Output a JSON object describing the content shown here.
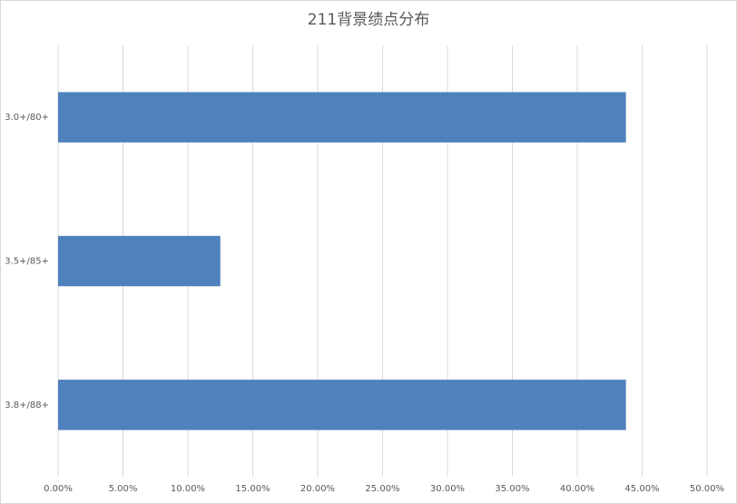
{
  "chart_data": {
    "type": "hbar",
    "title": "211背景绩点分布",
    "categories": [
      "3.0+/80+",
      "3.5+/85+",
      "3.8+/88+"
    ],
    "values": [
      43.75,
      12.5,
      43.75
    ],
    "color": "#4f81bd",
    "xlim": [
      0,
      50
    ],
    "xticks": [
      {
        "value": 0,
        "label": "0.00%"
      },
      {
        "value": 5,
        "label": "5.00%"
      },
      {
        "value": 10,
        "label": "10.00%"
      },
      {
        "value": 15,
        "label": "15.00%"
      },
      {
        "value": 20,
        "label": "20.00%"
      },
      {
        "value": 25,
        "label": "25.00%"
      },
      {
        "value": 30,
        "label": "30.00%"
      },
      {
        "value": 35,
        "label": "35.00%"
      },
      {
        "value": 40,
        "label": "40.00%"
      },
      {
        "value": 45,
        "label": "45.00%"
      },
      {
        "value": 50,
        "label": "50.00%"
      }
    ],
    "grid": true
  }
}
